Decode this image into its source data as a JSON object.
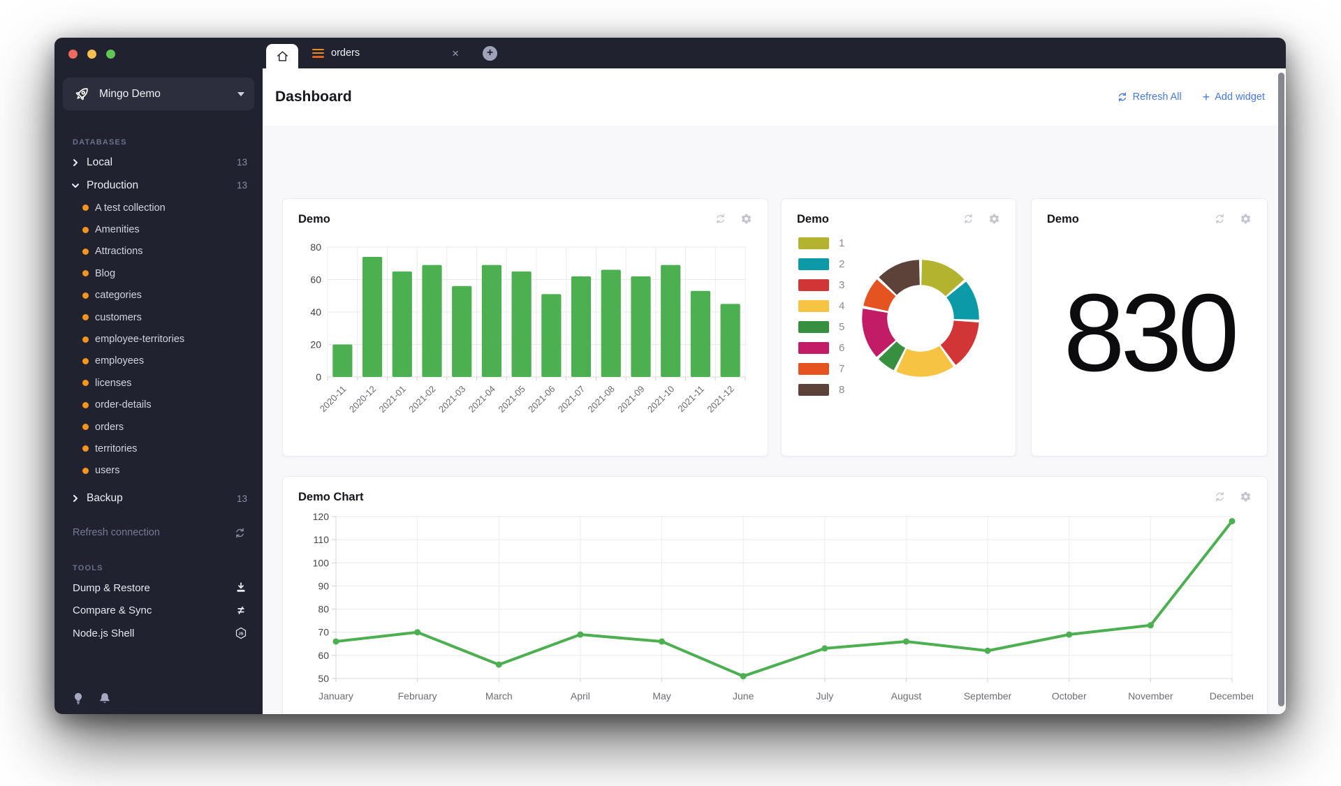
{
  "app": {
    "traffic_lights": [
      "#ed6a5e",
      "#f5bf4f",
      "#62c554"
    ]
  },
  "sidebar": {
    "connection_name": "Mingo Demo",
    "databases_label": "DATABASES",
    "tools_label": "TOOLS",
    "databases": [
      {
        "name": "Local",
        "count": "13"
      },
      {
        "name": "Production",
        "count": "13"
      },
      {
        "name": "Backup",
        "count": "13"
      }
    ],
    "collections": [
      "A test collection",
      "Amenities",
      "Attractions",
      "Blog",
      "categories",
      "customers",
      "employee-territories",
      "employees",
      "licenses",
      "order-details",
      "orders",
      "territories",
      "users"
    ],
    "refresh_connection_label": "Refresh connection",
    "tools": [
      {
        "label": "Dump & Restore",
        "icon": "download-icon"
      },
      {
        "label": "Compare & Sync",
        "icon": "not-equal-icon"
      },
      {
        "label": "Node.js Shell",
        "icon": "nodejs-icon"
      }
    ]
  },
  "tabbar": {
    "orders_tab_label": "orders"
  },
  "header": {
    "title": "Dashboard",
    "refresh_all_label": "Refresh All",
    "add_widget_label": "Add widget",
    "accent_color": "#4678e8"
  },
  "widgets": {
    "number_value": "830"
  },
  "chart_data": [
    {
      "id": "bar-widget",
      "type": "bar",
      "title": "Demo",
      "categories": [
        "2020-11",
        "2020-12",
        "2021-01",
        "2021-02",
        "2021-03",
        "2021-04",
        "2021-05",
        "2021-06",
        "2021-07",
        "2021-08",
        "2021-09",
        "2021-10",
        "2021-11",
        "2021-12"
      ],
      "values": [
        20,
        74,
        65,
        69,
        56,
        69,
        65,
        51,
        62,
        66,
        62,
        69,
        53,
        45
      ],
      "bar_color": "#4caf50",
      "ylim": [
        0,
        80
      ],
      "yticks": [
        0,
        20,
        40,
        60,
        80
      ],
      "grid": true,
      "legend_position": "none"
    },
    {
      "id": "donut-widget",
      "type": "pie",
      "title": "Demo",
      "labels": [
        "1",
        "2",
        "3",
        "4",
        "5",
        "6",
        "7",
        "8"
      ],
      "values": [
        48,
        41,
        50,
        60,
        19,
        52,
        30,
        45
      ],
      "colors": [
        "#b3b32f",
        "#0d9aa8",
        "#d23535",
        "#f6c343",
        "#37903f",
        "#c21c66",
        "#e55321",
        "#5c4238"
      ],
      "donut": true,
      "inner_radius_ratio": 0.57,
      "legend_position": "left"
    },
    {
      "id": "number-widget",
      "type": "table",
      "title": "Demo",
      "value": 830
    },
    {
      "id": "line-widget",
      "type": "line",
      "title": "Demo Chart",
      "categories": [
        "January",
        "February",
        "March",
        "April",
        "May",
        "June",
        "July",
        "August",
        "September",
        "October",
        "November",
        "December"
      ],
      "values": [
        66,
        70,
        56,
        69,
        66,
        51,
        63,
        66,
        62,
        69,
        73,
        118
      ],
      "line_color": "#4caf50",
      "ylim": [
        50,
        120
      ],
      "yticks": [
        50,
        60,
        70,
        80,
        90,
        100,
        110,
        120
      ],
      "grid": true,
      "legend_position": "none"
    }
  ]
}
